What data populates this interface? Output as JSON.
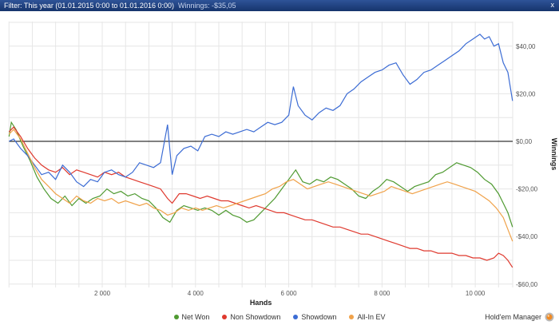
{
  "topbar": {
    "filter_label": "Filter: This year (01.01.2015 0:00 to 01.01.2016 0:00)",
    "winnings_label": "Winnings: -$35,05",
    "close_glyph": "x"
  },
  "brand": {
    "name": "Hold'em Manager"
  },
  "chart_data": {
    "type": "line",
    "title": "",
    "xlabel": "Hands",
    "ylabel": "Winnings",
    "xlim": [
      0,
      11000
    ],
    "ylim": [
      -62,
      50
    ],
    "grid": true,
    "legend_position": "bottom",
    "zero_line_color": "#000000",
    "grid_color": "#e6e6e6",
    "xticks": [
      {
        "label": "2 000",
        "value": 2000
      },
      {
        "label": "4 000",
        "value": 4000
      },
      {
        "label": "6 000",
        "value": 6000
      },
      {
        "label": "8 000",
        "value": 8000
      },
      {
        "label": "10 000",
        "value": 10000
      }
    ],
    "yticks": [
      {
        "label": "$40,00",
        "value": 40
      },
      {
        "label": "$20,00",
        "value": 20
      },
      {
        "label": "$0,00",
        "value": 0
      },
      {
        "label": "-$20,00",
        "value": -20
      },
      {
        "label": "-$40,00",
        "value": -40
      },
      {
        "label": "-$60,00",
        "value": -60
      }
    ],
    "series": [
      {
        "name": "Net Won",
        "color": "#4f9a31",
        "points": [
          [
            0,
            2
          ],
          [
            50,
            8
          ],
          [
            150,
            5
          ],
          [
            300,
            -2
          ],
          [
            450,
            -8
          ],
          [
            600,
            -15
          ],
          [
            750,
            -20
          ],
          [
            900,
            -24
          ],
          [
            1050,
            -26
          ],
          [
            1200,
            -23
          ],
          [
            1350,
            -27
          ],
          [
            1500,
            -24
          ],
          [
            1650,
            -26
          ],
          [
            1800,
            -24
          ],
          [
            1950,
            -23
          ],
          [
            2100,
            -20
          ],
          [
            2250,
            -22
          ],
          [
            2400,
            -21
          ],
          [
            2550,
            -23
          ],
          [
            2700,
            -22
          ],
          [
            2850,
            -24
          ],
          [
            3000,
            -25
          ],
          [
            3150,
            -28
          ],
          [
            3300,
            -32
          ],
          [
            3450,
            -34
          ],
          [
            3600,
            -29
          ],
          [
            3750,
            -27
          ],
          [
            3900,
            -28
          ],
          [
            4050,
            -29
          ],
          [
            4200,
            -28
          ],
          [
            4350,
            -29
          ],
          [
            4500,
            -31
          ],
          [
            4650,
            -29
          ],
          [
            4800,
            -31
          ],
          [
            4950,
            -32
          ],
          [
            5100,
            -34
          ],
          [
            5250,
            -33
          ],
          [
            5400,
            -30
          ],
          [
            5550,
            -27
          ],
          [
            5700,
            -24
          ],
          [
            5850,
            -20
          ],
          [
            6000,
            -16
          ],
          [
            6150,
            -12
          ],
          [
            6300,
            -17
          ],
          [
            6450,
            -18
          ],
          [
            6600,
            -16
          ],
          [
            6750,
            -17
          ],
          [
            6900,
            -15
          ],
          [
            7050,
            -16
          ],
          [
            7200,
            -18
          ],
          [
            7350,
            -20
          ],
          [
            7500,
            -23
          ],
          [
            7650,
            -24
          ],
          [
            7800,
            -21
          ],
          [
            7950,
            -19
          ],
          [
            8100,
            -16
          ],
          [
            8250,
            -17
          ],
          [
            8400,
            -19
          ],
          [
            8550,
            -21
          ],
          [
            8700,
            -19
          ],
          [
            8850,
            -18
          ],
          [
            9000,
            -17
          ],
          [
            9150,
            -14
          ],
          [
            9300,
            -13
          ],
          [
            9450,
            -11
          ],
          [
            9600,
            -9
          ],
          [
            9750,
            -10
          ],
          [
            9900,
            -11
          ],
          [
            10050,
            -13
          ],
          [
            10200,
            -16
          ],
          [
            10350,
            -18
          ],
          [
            10500,
            -22
          ],
          [
            10600,
            -26
          ],
          [
            10700,
            -30
          ],
          [
            10800,
            -36
          ]
        ]
      },
      {
        "name": "Non Showdown",
        "color": "#df392e",
        "points": [
          [
            0,
            4
          ],
          [
            100,
            6
          ],
          [
            250,
            2
          ],
          [
            400,
            -3
          ],
          [
            550,
            -7
          ],
          [
            700,
            -10
          ],
          [
            850,
            -12
          ],
          [
            1000,
            -13
          ],
          [
            1150,
            -11
          ],
          [
            1300,
            -14
          ],
          [
            1450,
            -12
          ],
          [
            1600,
            -13
          ],
          [
            1750,
            -14
          ],
          [
            1900,
            -15
          ],
          [
            2050,
            -13
          ],
          [
            2200,
            -14
          ],
          [
            2350,
            -13
          ],
          [
            2500,
            -15
          ],
          [
            2650,
            -16
          ],
          [
            2800,
            -17
          ],
          [
            2950,
            -18
          ],
          [
            3100,
            -19
          ],
          [
            3250,
            -20
          ],
          [
            3400,
            -24
          ],
          [
            3500,
            -26
          ],
          [
            3650,
            -22
          ],
          [
            3800,
            -22
          ],
          [
            3950,
            -23
          ],
          [
            4100,
            -24
          ],
          [
            4250,
            -23
          ],
          [
            4400,
            -24
          ],
          [
            4550,
            -25
          ],
          [
            4700,
            -25
          ],
          [
            4850,
            -26
          ],
          [
            5000,
            -27
          ],
          [
            5150,
            -28
          ],
          [
            5300,
            -27
          ],
          [
            5450,
            -28
          ],
          [
            5600,
            -29
          ],
          [
            5750,
            -30
          ],
          [
            5900,
            -30
          ],
          [
            6050,
            -31
          ],
          [
            6200,
            -32
          ],
          [
            6350,
            -33
          ],
          [
            6500,
            -33
          ],
          [
            6650,
            -34
          ],
          [
            6800,
            -35
          ],
          [
            6950,
            -36
          ],
          [
            7100,
            -36
          ],
          [
            7250,
            -37
          ],
          [
            7400,
            -38
          ],
          [
            7550,
            -39
          ],
          [
            7700,
            -39
          ],
          [
            7850,
            -40
          ],
          [
            8000,
            -41
          ],
          [
            8150,
            -42
          ],
          [
            8300,
            -43
          ],
          [
            8450,
            -44
          ],
          [
            8600,
            -45
          ],
          [
            8750,
            -45
          ],
          [
            8900,
            -46
          ],
          [
            9050,
            -46
          ],
          [
            9200,
            -47
          ],
          [
            9350,
            -47
          ],
          [
            9500,
            -47
          ],
          [
            9650,
            -48
          ],
          [
            9800,
            -48
          ],
          [
            9950,
            -49
          ],
          [
            10100,
            -49
          ],
          [
            10250,
            -50
          ],
          [
            10400,
            -49
          ],
          [
            10500,
            -47
          ],
          [
            10600,
            -48
          ],
          [
            10700,
            -50
          ],
          [
            10800,
            -53
          ]
        ]
      },
      {
        "name": "Showdown",
        "color": "#3c6cd4",
        "points": [
          [
            0,
            0
          ],
          [
            100,
            1
          ],
          [
            250,
            -3
          ],
          [
            400,
            -6
          ],
          [
            550,
            -10
          ],
          [
            700,
            -14
          ],
          [
            850,
            -13
          ],
          [
            1000,
            -16
          ],
          [
            1150,
            -10
          ],
          [
            1300,
            -13
          ],
          [
            1450,
            -17
          ],
          [
            1600,
            -19
          ],
          [
            1750,
            -16
          ],
          [
            1900,
            -17
          ],
          [
            2050,
            -13
          ],
          [
            2200,
            -12
          ],
          [
            2350,
            -14
          ],
          [
            2500,
            -15
          ],
          [
            2650,
            -13
          ],
          [
            2800,
            -9
          ],
          [
            2950,
            -10
          ],
          [
            3100,
            -11
          ],
          [
            3250,
            -9
          ],
          [
            3400,
            7
          ],
          [
            3500,
            -14
          ],
          [
            3600,
            -6
          ],
          [
            3750,
            -3
          ],
          [
            3900,
            -2
          ],
          [
            4050,
            -4
          ],
          [
            4200,
            2
          ],
          [
            4350,
            3
          ],
          [
            4500,
            2
          ],
          [
            4650,
            4
          ],
          [
            4800,
            3
          ],
          [
            4950,
            4
          ],
          [
            5100,
            5
          ],
          [
            5250,
            4
          ],
          [
            5400,
            6
          ],
          [
            5550,
            8
          ],
          [
            5700,
            7
          ],
          [
            5850,
            8
          ],
          [
            6000,
            11
          ],
          [
            6100,
            23
          ],
          [
            6200,
            15
          ],
          [
            6350,
            11
          ],
          [
            6500,
            9
          ],
          [
            6650,
            12
          ],
          [
            6800,
            14
          ],
          [
            6950,
            13
          ],
          [
            7100,
            15
          ],
          [
            7250,
            20
          ],
          [
            7400,
            22
          ],
          [
            7550,
            25
          ],
          [
            7700,
            27
          ],
          [
            7850,
            29
          ],
          [
            8000,
            30
          ],
          [
            8150,
            32
          ],
          [
            8300,
            33
          ],
          [
            8450,
            28
          ],
          [
            8600,
            24
          ],
          [
            8750,
            26
          ],
          [
            8900,
            29
          ],
          [
            9050,
            30
          ],
          [
            9200,
            32
          ],
          [
            9350,
            34
          ],
          [
            9500,
            36
          ],
          [
            9650,
            38
          ],
          [
            9800,
            41
          ],
          [
            9950,
            43
          ],
          [
            10100,
            45
          ],
          [
            10200,
            43
          ],
          [
            10300,
            44
          ],
          [
            10400,
            40
          ],
          [
            10500,
            41
          ],
          [
            10600,
            33
          ],
          [
            10700,
            29
          ],
          [
            10800,
            17
          ]
        ]
      },
      {
        "name": "All-In EV",
        "color": "#f0a24a",
        "points": [
          [
            0,
            3
          ],
          [
            100,
            5
          ],
          [
            250,
            1
          ],
          [
            400,
            -5
          ],
          [
            550,
            -11
          ],
          [
            700,
            -16
          ],
          [
            850,
            -19
          ],
          [
            1000,
            -22
          ],
          [
            1150,
            -24
          ],
          [
            1300,
            -26
          ],
          [
            1450,
            -23
          ],
          [
            1600,
            -25
          ],
          [
            1750,
            -26
          ],
          [
            1900,
            -24
          ],
          [
            2050,
            -25
          ],
          [
            2200,
            -24
          ],
          [
            2350,
            -26
          ],
          [
            2500,
            -25
          ],
          [
            2650,
            -26
          ],
          [
            2800,
            -27
          ],
          [
            2950,
            -26
          ],
          [
            3100,
            -28
          ],
          [
            3250,
            -29
          ],
          [
            3400,
            -31
          ],
          [
            3550,
            -30
          ],
          [
            3700,
            -28
          ],
          [
            3850,
            -29
          ],
          [
            4000,
            -28
          ],
          [
            4150,
            -29
          ],
          [
            4300,
            -28
          ],
          [
            4450,
            -27
          ],
          [
            4600,
            -28
          ],
          [
            4750,
            -27
          ],
          [
            4900,
            -26
          ],
          [
            5050,
            -25
          ],
          [
            5200,
            -24
          ],
          [
            5350,
            -23
          ],
          [
            5500,
            -22
          ],
          [
            5650,
            -20
          ],
          [
            5800,
            -19
          ],
          [
            5950,
            -17
          ],
          [
            6100,
            -16
          ],
          [
            6250,
            -18
          ],
          [
            6400,
            -20
          ],
          [
            6550,
            -19
          ],
          [
            6700,
            -18
          ],
          [
            6850,
            -17
          ],
          [
            7000,
            -18
          ],
          [
            7150,
            -19
          ],
          [
            7300,
            -20
          ],
          [
            7450,
            -21
          ],
          [
            7600,
            -22
          ],
          [
            7750,
            -23
          ],
          [
            7900,
            -22
          ],
          [
            8050,
            -21
          ],
          [
            8200,
            -19
          ],
          [
            8350,
            -20
          ],
          [
            8500,
            -21
          ],
          [
            8650,
            -22
          ],
          [
            8800,
            -21
          ],
          [
            8950,
            -20
          ],
          [
            9100,
            -19
          ],
          [
            9250,
            -18
          ],
          [
            9400,
            -17
          ],
          [
            9550,
            -18
          ],
          [
            9700,
            -19
          ],
          [
            9850,
            -20
          ],
          [
            10000,
            -21
          ],
          [
            10150,
            -23
          ],
          [
            10300,
            -25
          ],
          [
            10450,
            -28
          ],
          [
            10600,
            -32
          ],
          [
            10700,
            -37
          ],
          [
            10800,
            -42
          ]
        ]
      }
    ]
  }
}
